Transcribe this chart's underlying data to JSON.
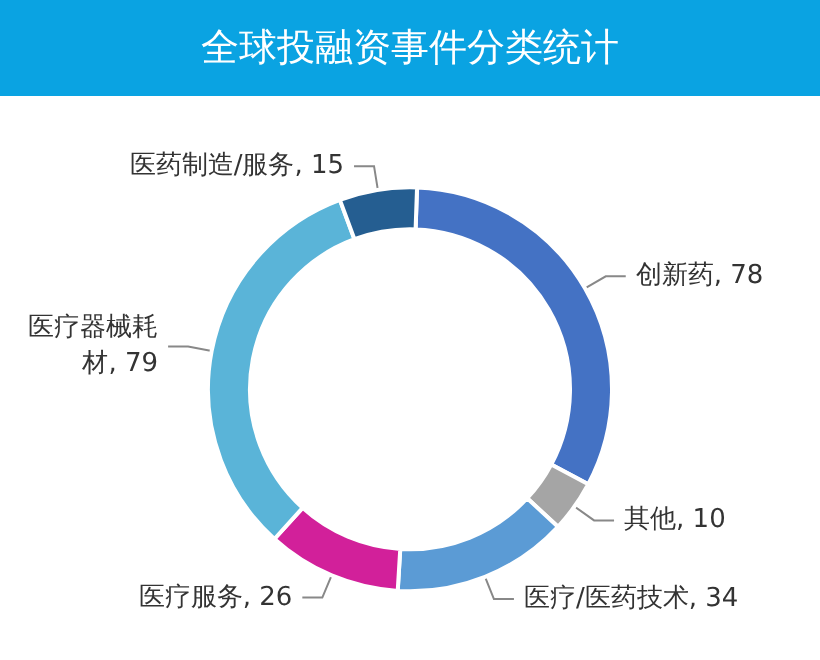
{
  "chart_data": {
    "type": "donut",
    "title": "全球投融资事件分类统计",
    "categories": [
      "创新药",
      "其他",
      "医疗/医药技术",
      "医疗服务",
      "医疗器械耗材",
      "医药制造/服务"
    ],
    "values": [
      78,
      10,
      34,
      26,
      79,
      15
    ],
    "colors": [
      "#4472c4",
      "#a5a5a5",
      "#5b9bd5",
      "#d2209a",
      "#5ab4d8",
      "#255e91"
    ],
    "value_labels": [
      ", 78",
      ", 10",
      ", 34",
      ", 26",
      ", 79",
      ", 15"
    ],
    "legend": false
  }
}
